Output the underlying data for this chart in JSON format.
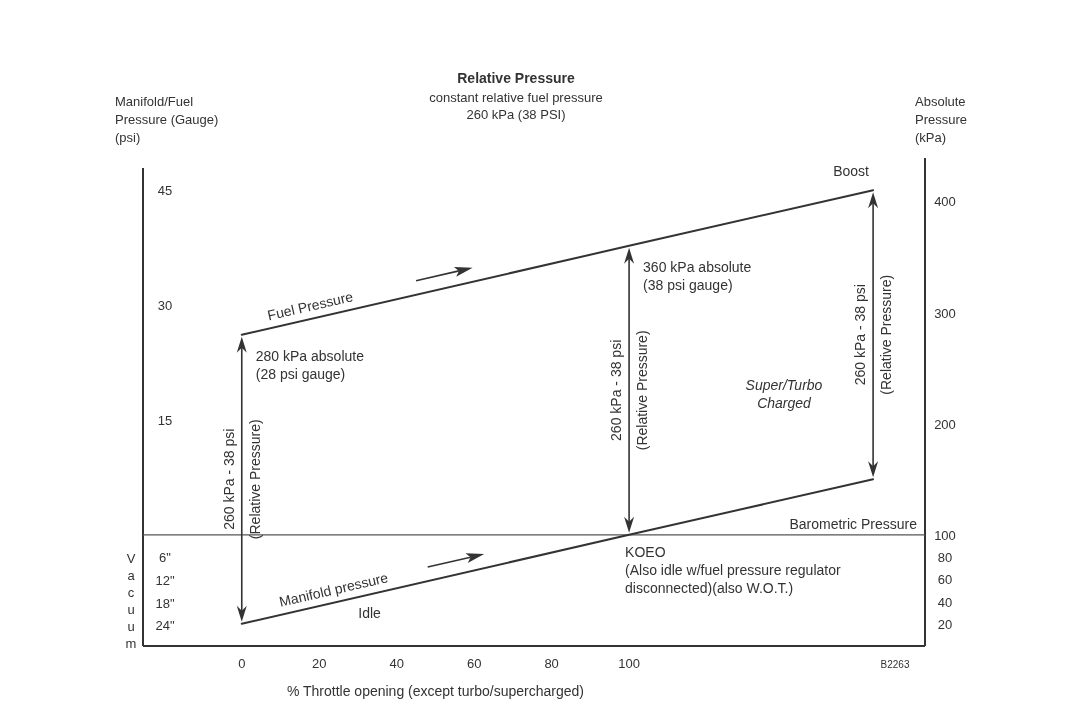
{
  "chart_data": {
    "type": "line",
    "title": "Relative Pressure",
    "subtitle": "constant relative fuel pressure\n260 kPa (38 PSI)",
    "xlabel": "% Throttle opening (except turbo/supercharged)",
    "ylabel": "Manifold/Fuel\nPressure (Gauge)\n(psi)",
    "y2label": "Absolute\nPressure\n(kPa)",
    "xlim": [
      -25.5,
      176.4
    ],
    "xticks": [
      0,
      20,
      40,
      60,
      80,
      100
    ],
    "ylim": [
      -14.5,
      47.9
    ],
    "yticks": [
      45,
      30,
      15
    ],
    "y3lim": [
      29.53,
      -97.46
    ],
    "y3ticks": [
      {
        "value": 6,
        "label": "6\""
      },
      {
        "value": 12,
        "label": "12\""
      },
      {
        "value": 18,
        "label": "18\""
      },
      {
        "value": 24,
        "label": "24\""
      }
    ],
    "y2lim": [
      0,
      430
    ],
    "y2ticks": [
      400,
      300,
      200,
      100,
      80,
      60,
      40,
      20
    ],
    "series": [
      {
        "name": "Fuel Pressure",
        "color": "#333333",
        "axis": "y2",
        "x": [
          0,
          100,
          163
        ],
        "values": [
          280,
          360,
          410
        ]
      },
      {
        "name": "Manifold pressure",
        "color": "#333333",
        "axis": "y2",
        "x": [
          0,
          100,
          163
        ],
        "values": [
          20,
          100,
          150
        ]
      }
    ],
    "ref_lines": [
      {
        "axis": "y2",
        "value": 100,
        "label": "Barometric Pressure",
        "color": "#555555"
      }
    ],
    "annotations": [
      "280 kPa absolute\n(28 psi gauge)",
      "360 kPa absolute\n(38 psi gauge)",
      "Boost",
      "KOEO\n(Also idle w/fuel pressure regulator\ndisconnected)(also W.O.T.)",
      "Idle",
      "Super/Turbo\nCharged",
      "B2263",
      "260 kPa - 38 psi\n(Relative Pressure)",
      "260 kPa - 38 psi\n(Relative Pressure)",
      "260 kPa - 38 psi\n(Relative Pressure)",
      "Vacuum"
    ]
  }
}
